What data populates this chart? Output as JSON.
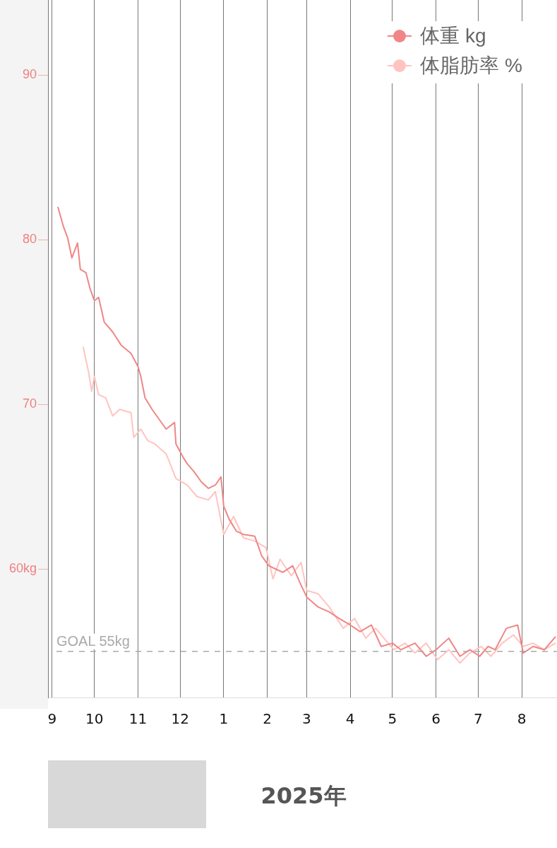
{
  "chart_data": {
    "type": "line",
    "xlabel": "2025年",
    "legend": "top right",
    "grid": "x",
    "marker": "none",
    "line_style": "solid",
    "xlim": [
      "2024-08-29",
      "2025-08-26"
    ],
    "xticks": [
      {
        "value": "2024-09-01",
        "label": "9"
      },
      {
        "value": "2024-10-01",
        "label": "10"
      },
      {
        "value": "2024-11-01",
        "label": "11"
      },
      {
        "value": "2024-12-01",
        "label": "12"
      },
      {
        "value": "2025-01-01",
        "label": "1"
      },
      {
        "value": "2025-02-01",
        "label": "2"
      },
      {
        "value": "2025-03-01",
        "label": "3"
      },
      {
        "value": "2025-04-01",
        "label": "4"
      },
      {
        "value": "2025-05-01",
        "label": "5"
      },
      {
        "value": "2025-06-01",
        "label": "6"
      },
      {
        "value": "2025-07-01",
        "label": "7"
      },
      {
        "value": "2025-08-01",
        "label": "8"
      }
    ],
    "ylim": [
      52.2,
      94.7
    ],
    "yticks": [
      {
        "value": 60,
        "label": "60kg"
      },
      70,
      80,
      90
    ],
    "ref_lines": [
      {
        "axis": "y",
        "value": 55,
        "label": "GOAL 55kg",
        "color": "#aaaaaa",
        "line_style": "dashed"
      }
    ],
    "series": [
      {
        "name": "体重 kg",
        "color": "#f08686",
        "x": [
          "2024-09-05",
          "2024-09-09",
          "2024-09-12",
          "2024-09-15",
          "2024-09-19",
          "2024-09-21",
          "2024-09-25",
          "2024-09-28",
          "2024-10-01",
          "2024-10-04",
          "2024-10-08",
          "2024-10-14",
          "2024-10-20",
          "2024-10-27",
          "2024-11-01",
          "2024-11-03",
          "2024-11-06",
          "2024-11-11",
          "2024-11-16",
          "2024-11-21",
          "2024-11-27",
          "2024-11-28",
          "2024-12-03",
          "2024-12-06",
          "2024-12-11",
          "2024-12-16",
          "2024-12-21",
          "2024-12-26",
          "2024-12-30",
          "2025-01-01",
          "2025-01-05",
          "2025-01-10",
          "2025-01-15",
          "2025-01-23",
          "2025-01-28",
          "2025-02-02",
          "2025-02-07",
          "2025-02-12",
          "2025-02-19",
          "2025-02-24",
          "2025-03-01",
          "2025-03-09",
          "2025-03-17",
          "2025-03-24",
          "2025-04-01",
          "2025-04-08",
          "2025-04-16",
          "2025-04-23",
          "2025-05-01",
          "2025-05-07",
          "2025-05-17",
          "2025-05-25",
          "2025-06-01",
          "2025-06-10",
          "2025-06-18",
          "2025-06-25",
          "2025-07-02",
          "2025-07-08",
          "2025-07-13",
          "2025-07-21",
          "2025-07-29",
          "2025-08-02",
          "2025-08-09",
          "2025-08-17",
          "2025-08-25"
        ],
        "values": [
          82.0,
          80.8,
          80.1,
          78.9,
          79.8,
          78.2,
          78.0,
          77.0,
          76.3,
          76.5,
          75.0,
          74.4,
          73.6,
          73.1,
          72.3,
          71.7,
          70.4,
          69.7,
          69.1,
          68.5,
          68.9,
          67.6,
          66.8,
          66.4,
          65.9,
          65.3,
          64.9,
          65.1,
          65.6,
          63.8,
          63.0,
          62.3,
          62.1,
          62.0,
          60.8,
          60.2,
          60.0,
          59.8,
          60.2,
          59.2,
          58.3,
          57.7,
          57.4,
          57.0,
          56.6,
          56.2,
          56.6,
          55.3,
          55.5,
          55.1,
          55.5,
          54.7,
          55.1,
          55.8,
          54.7,
          55.1,
          54.7,
          55.3,
          55.1,
          56.4,
          56.6,
          54.9,
          55.3,
          55.1,
          55.9
        ]
      },
      {
        "name": "体脂肪率 %",
        "color": "#ffc4c0",
        "x": [
          "2024-09-23",
          "2024-09-27",
          "2024-09-29",
          "2024-10-01",
          "2024-10-04",
          "2024-10-09",
          "2024-10-14",
          "2024-10-19",
          "2024-10-27",
          "2024-10-29",
          "2024-11-03",
          "2024-11-08",
          "2024-11-13",
          "2024-11-21",
          "2024-11-28",
          "2024-12-06",
          "2024-12-13",
          "2024-12-21",
          "2024-12-26",
          "2025-01-01",
          "2025-01-08",
          "2025-01-15",
          "2025-01-23",
          "2025-01-31",
          "2025-02-05",
          "2025-02-10",
          "2025-02-18",
          "2025-02-25",
          "2025-03-01",
          "2025-03-09",
          "2025-03-17",
          "2025-03-27",
          "2025-04-04",
          "2025-04-12",
          "2025-04-19",
          "2025-04-27",
          "2025-05-02",
          "2025-05-10",
          "2025-05-17",
          "2025-05-25",
          "2025-06-02",
          "2025-06-10",
          "2025-06-18",
          "2025-06-25",
          "2025-07-03",
          "2025-07-10",
          "2025-07-18",
          "2025-07-26",
          "2025-08-02",
          "2025-08-09",
          "2025-08-17",
          "2025-08-25"
        ],
        "values": [
          73.5,
          71.9,
          70.8,
          71.7,
          70.6,
          70.4,
          69.3,
          69.7,
          69.5,
          68.0,
          68.5,
          67.8,
          67.6,
          67.0,
          65.5,
          65.1,
          64.4,
          64.2,
          64.7,
          62.1,
          63.2,
          61.9,
          61.7,
          61.3,
          59.4,
          60.6,
          59.6,
          60.4,
          58.7,
          58.5,
          57.7,
          56.4,
          57.0,
          55.8,
          56.4,
          55.6,
          55.1,
          55.5,
          54.9,
          55.5,
          54.5,
          55.1,
          54.3,
          54.9,
          55.3,
          54.7,
          55.5,
          56.0,
          55.3,
          55.5,
          55.1,
          55.5
        ]
      }
    ]
  }
}
